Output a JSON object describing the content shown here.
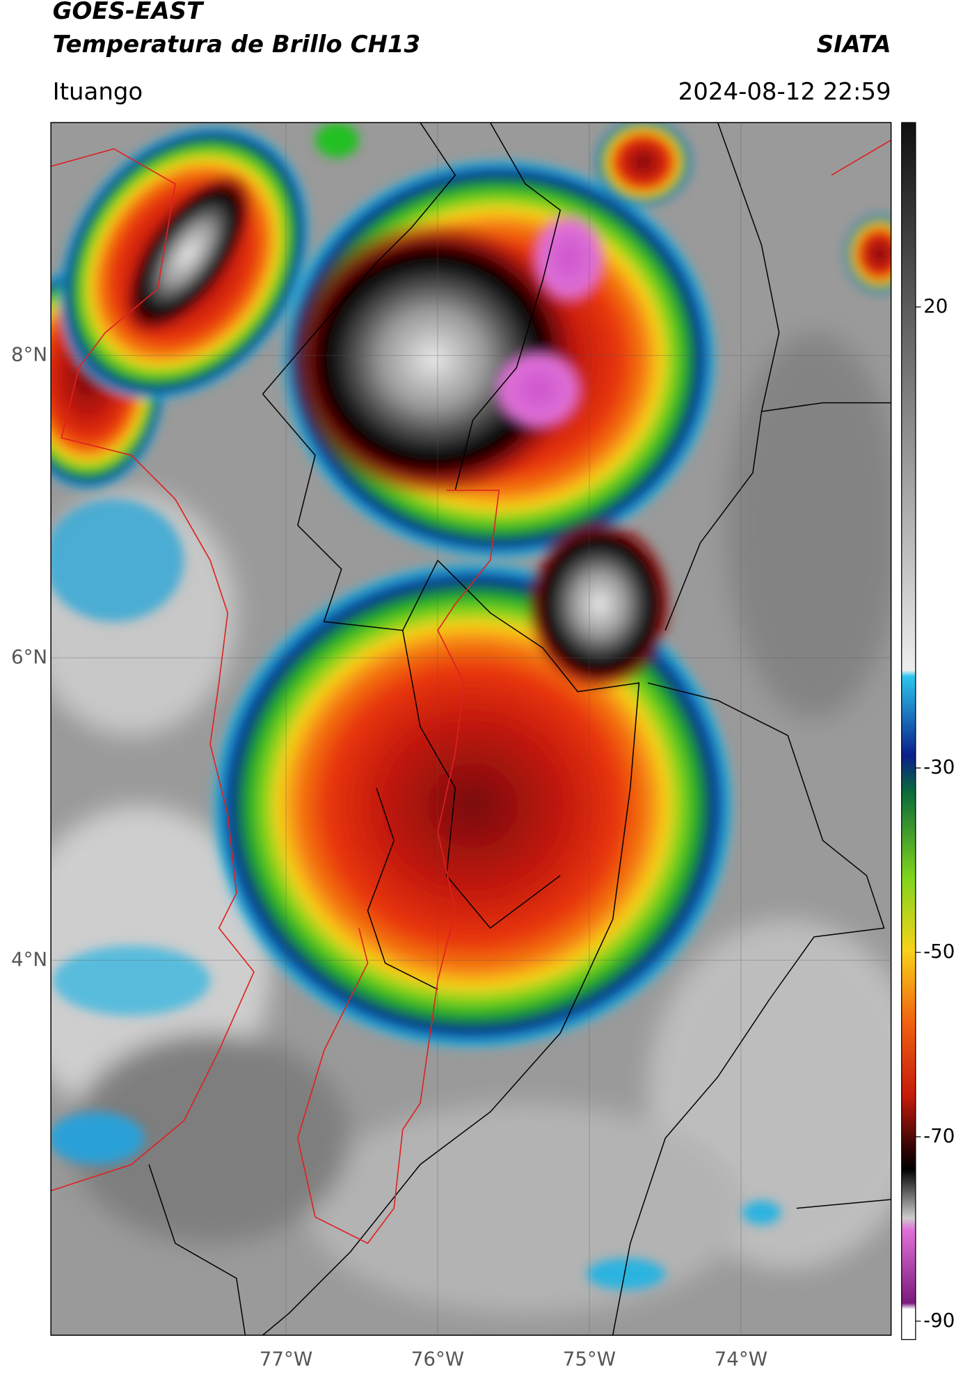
{
  "header": {
    "satellite": "GOES-EAST",
    "product": "Temperatura de Brillo CH13",
    "organization": "SIATA",
    "location": "Ituango",
    "datetime": "2024-08-12 22:59"
  },
  "map": {
    "xlim": [
      -78.55,
      -73.01
    ],
    "ylim": [
      1.52,
      9.54
    ],
    "xticks": [
      {
        "value": -77,
        "label": "77°W"
      },
      {
        "value": -76,
        "label": "76°W"
      },
      {
        "value": -75,
        "label": "75°W"
      },
      {
        "value": -74,
        "label": "74°W"
      }
    ],
    "yticks": [
      {
        "value": 8,
        "label": "8°N"
      },
      {
        "value": 6,
        "label": "6°N"
      },
      {
        "value": 4,
        "label": "4°N"
      }
    ],
    "grid": true
  },
  "colorbar": {
    "lim": [
      -92,
      40
    ],
    "ticks": [
      20,
      -30,
      -50,
      -70,
      -90
    ]
  }
}
